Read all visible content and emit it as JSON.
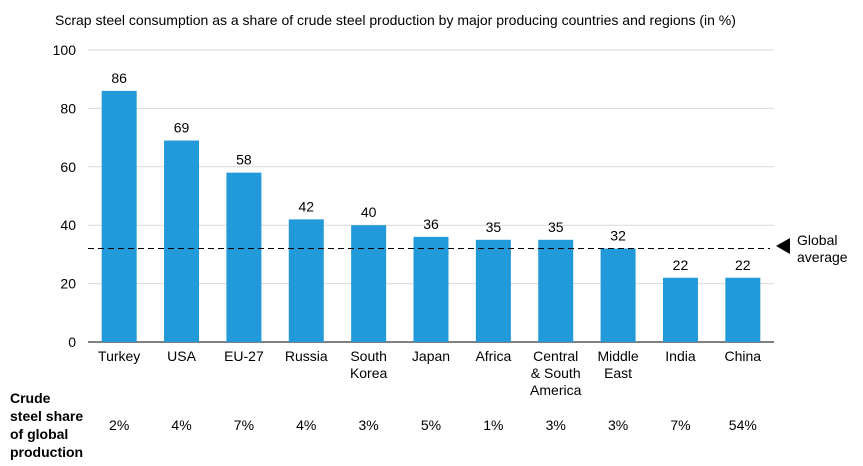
{
  "title": "Scrap steel consumption as a share of crude steel production by major producing countries and regions (in %)",
  "chart_data": {
    "type": "bar",
    "title": "Scrap steel consumption as a share of crude steel production by major producing countries and regions (in %)",
    "categories": [
      "Turkey",
      "USA",
      "EU-27",
      "Russia",
      "South Korea",
      "Japan",
      "Africa",
      "Central & South America",
      "Middle East",
      "India",
      "China"
    ],
    "category_lines": [
      [
        "Turkey"
      ],
      [
        "USA"
      ],
      [
        "EU-27"
      ],
      [
        "Russia"
      ],
      [
        "South",
        "Korea"
      ],
      [
        "Japan"
      ],
      [
        "Africa"
      ],
      [
        "Central",
        "& South",
        "America"
      ],
      [
        "Middle",
        "East"
      ],
      [
        "India"
      ],
      [
        "China"
      ]
    ],
    "values": [
      86,
      69,
      58,
      42,
      40,
      36,
      35,
      35,
      32,
      22,
      22
    ],
    "data_labels": [
      "86",
      "69",
      "58",
      "42",
      "40",
      "36",
      "35",
      "35",
      "32",
      "22",
      "22"
    ],
    "yticks": [
      "0",
      "20",
      "40",
      "60",
      "80",
      "100"
    ],
    "ylim": [
      0,
      100
    ],
    "grid": true,
    "bar_color": "#2299d8",
    "reference_line": {
      "value": 32,
      "label_lines": [
        "Global",
        "average"
      ],
      "style": "dashed"
    }
  },
  "share_row": {
    "label_lines": [
      "Crude",
      "steel share",
      "of global",
      "production"
    ],
    "values": [
      "2%",
      "4%",
      "7%",
      "4%",
      "3%",
      "5%",
      "1%",
      "3%",
      "3%",
      "7%",
      "54%"
    ]
  }
}
